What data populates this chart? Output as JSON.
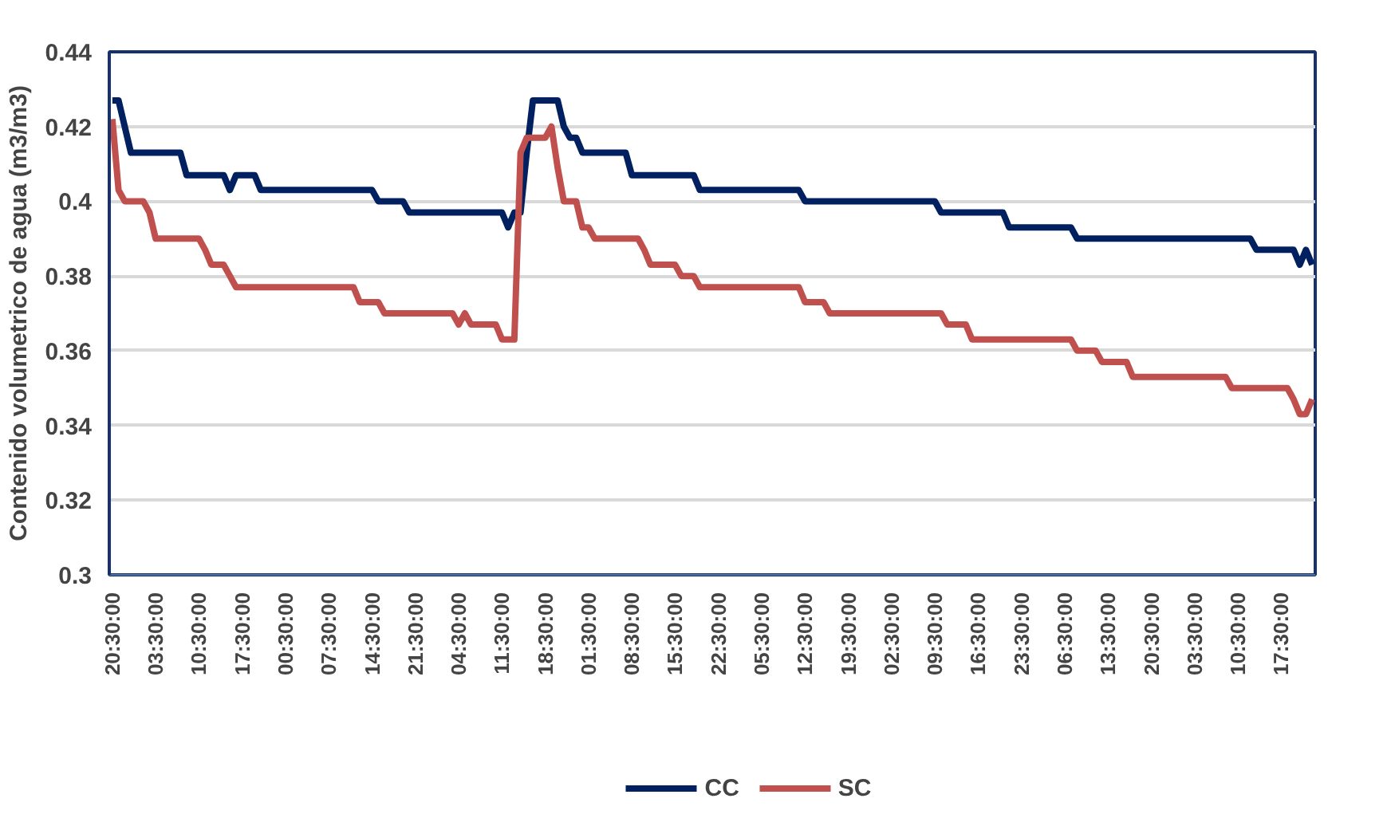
{
  "chart_data": {
    "type": "line",
    "ylabel": "Contenido volumetrico de agua (m3/m3)",
    "ylim": [
      0.3,
      0.44
    ],
    "yticks": [
      0.3,
      0.32,
      0.34,
      0.36,
      0.38,
      0.4,
      0.42,
      0.44
    ],
    "categories": [
      "20:30:00",
      null,
      null,
      null,
      null,
      null,
      null,
      "03:30:00",
      null,
      null,
      null,
      null,
      null,
      null,
      "10:30:00",
      null,
      null,
      null,
      null,
      null,
      null,
      "17:30:00",
      null,
      null,
      null,
      null,
      null,
      null,
      "00:30:00",
      null,
      null,
      null,
      null,
      null,
      null,
      "07:30:00",
      null,
      null,
      null,
      null,
      null,
      null,
      "14:30:00",
      null,
      null,
      null,
      null,
      null,
      null,
      "21:30:00",
      null,
      null,
      null,
      null,
      null,
      null,
      "04:30:00",
      null,
      null,
      null,
      null,
      null,
      null,
      "11:30:00",
      null,
      null,
      null,
      null,
      null,
      null,
      "18:30:00",
      null,
      null,
      null,
      null,
      null,
      null,
      "01:30:00",
      null,
      null,
      null,
      null,
      null,
      null,
      "08:30:00",
      null,
      null,
      null,
      null,
      null,
      null,
      "15:30:00",
      null,
      null,
      null,
      null,
      null,
      null,
      "22:30:00",
      null,
      null,
      null,
      null,
      null,
      null,
      "05:30:00",
      null,
      null,
      null,
      null,
      null,
      null,
      "12:30:00",
      null,
      null,
      null,
      null,
      null,
      null,
      "19:30:00",
      null,
      null,
      null,
      null,
      null,
      null,
      "02:30:00",
      null,
      null,
      null,
      null,
      null,
      null,
      "09:30:00",
      null,
      null,
      null,
      null,
      null,
      null,
      "16:30:00",
      null,
      null,
      null,
      null,
      null,
      null,
      "23:30:00",
      null,
      null,
      null,
      null,
      null,
      null,
      "06:30:00",
      null,
      null,
      null,
      null,
      null,
      null,
      "13:30:00",
      null,
      null,
      null,
      null,
      null,
      null,
      "20:30:00",
      null,
      null,
      null,
      null,
      null,
      null,
      "03:30:00",
      null,
      null,
      null,
      null,
      null,
      null,
      "10:30:00",
      null,
      null,
      null,
      null,
      null,
      null,
      "17:30:00",
      null,
      null,
      null,
      null,
      null
    ],
    "grid": "y",
    "legend": "bottom",
    "line_style": "solid",
    "marker": "none",
    "series": [
      {
        "name": "CC",
        "color": "#002060",
        "values": [
          0.427,
          0.427,
          0.42,
          0.413,
          0.413,
          0.413,
          0.413,
          0.413,
          0.413,
          0.413,
          0.413,
          0.413,
          0.407,
          0.407,
          0.407,
          0.407,
          0.407,
          0.407,
          0.407,
          0.403,
          0.407,
          0.407,
          0.407,
          0.407,
          0.403,
          0.403,
          0.403,
          0.403,
          0.403,
          0.403,
          0.403,
          0.403,
          0.403,
          0.403,
          0.403,
          0.403,
          0.403,
          0.403,
          0.403,
          0.403,
          0.403,
          0.403,
          0.403,
          0.4,
          0.4,
          0.4,
          0.4,
          0.4,
          0.397,
          0.397,
          0.397,
          0.397,
          0.397,
          0.397,
          0.397,
          0.397,
          0.397,
          0.397,
          0.397,
          0.397,
          0.397,
          0.397,
          0.397,
          0.397,
          0.393,
          0.397,
          0.397,
          0.413,
          0.427,
          0.427,
          0.427,
          0.427,
          0.427,
          0.42,
          0.417,
          0.417,
          0.413,
          0.413,
          0.413,
          0.413,
          0.413,
          0.413,
          0.413,
          0.413,
          0.407,
          0.407,
          0.407,
          0.407,
          0.407,
          0.407,
          0.407,
          0.407,
          0.407,
          0.407,
          0.407,
          0.403,
          0.403,
          0.403,
          0.403,
          0.403,
          0.403,
          0.403,
          0.403,
          0.403,
          0.403,
          0.403,
          0.403,
          0.403,
          0.403,
          0.403,
          0.403,
          0.403,
          0.4,
          0.4,
          0.4,
          0.4,
          0.4,
          0.4,
          0.4,
          0.4,
          0.4,
          0.4,
          0.4,
          0.4,
          0.4,
          0.4,
          0.4,
          0.4,
          0.4,
          0.4,
          0.4,
          0.4,
          0.4,
          0.4,
          0.397,
          0.397,
          0.397,
          0.397,
          0.397,
          0.397,
          0.397,
          0.397,
          0.397,
          0.397,
          0.397,
          0.393,
          0.393,
          0.393,
          0.393,
          0.393,
          0.393,
          0.393,
          0.393,
          0.393,
          0.393,
          0.393,
          0.39,
          0.39,
          0.39,
          0.39,
          0.39,
          0.39,
          0.39,
          0.39,
          0.39,
          0.39,
          0.39,
          0.39,
          0.39,
          0.39,
          0.39,
          0.39,
          0.39,
          0.39,
          0.39,
          0.39,
          0.39,
          0.39,
          0.39,
          0.39,
          0.39,
          0.39,
          0.39,
          0.39,
          0.39,
          0.387,
          0.387,
          0.387,
          0.387,
          0.387,
          0.387,
          0.387,
          0.383,
          0.387,
          0.383
        ]
      },
      {
        "name": "SC",
        "color": "#c0504d",
        "values": [
          0.422,
          0.403,
          0.4,
          0.4,
          0.4,
          0.4,
          0.397,
          0.39,
          0.39,
          0.39,
          0.39,
          0.39,
          0.39,
          0.39,
          0.39,
          0.387,
          0.383,
          0.383,
          0.383,
          0.38,
          0.377,
          0.377,
          0.377,
          0.377,
          0.377,
          0.377,
          0.377,
          0.377,
          0.377,
          0.377,
          0.377,
          0.377,
          0.377,
          0.377,
          0.377,
          0.377,
          0.377,
          0.377,
          0.377,
          0.377,
          0.373,
          0.373,
          0.373,
          0.373,
          0.37,
          0.37,
          0.37,
          0.37,
          0.37,
          0.37,
          0.37,
          0.37,
          0.37,
          0.37,
          0.37,
          0.37,
          0.367,
          0.37,
          0.367,
          0.367,
          0.367,
          0.367,
          0.367,
          0.363,
          0.363,
          0.363,
          0.413,
          0.417,
          0.417,
          0.417,
          0.417,
          0.42,
          0.409,
          0.4,
          0.4,
          0.4,
          0.393,
          0.393,
          0.39,
          0.39,
          0.39,
          0.39,
          0.39,
          0.39,
          0.39,
          0.39,
          0.387,
          0.383,
          0.383,
          0.383,
          0.383,
          0.383,
          0.38,
          0.38,
          0.38,
          0.377,
          0.377,
          0.377,
          0.377,
          0.377,
          0.377,
          0.377,
          0.377,
          0.377,
          0.377,
          0.377,
          0.377,
          0.377,
          0.377,
          0.377,
          0.377,
          0.377,
          0.373,
          0.373,
          0.373,
          0.373,
          0.37,
          0.37,
          0.37,
          0.37,
          0.37,
          0.37,
          0.37,
          0.37,
          0.37,
          0.37,
          0.37,
          0.37,
          0.37,
          0.37,
          0.37,
          0.37,
          0.37,
          0.37,
          0.37,
          0.367,
          0.367,
          0.367,
          0.367,
          0.363,
          0.363,
          0.363,
          0.363,
          0.363,
          0.363,
          0.363,
          0.363,
          0.363,
          0.363,
          0.363,
          0.363,
          0.363,
          0.363,
          0.363,
          0.363,
          0.363,
          0.36,
          0.36,
          0.36,
          0.36,
          0.357,
          0.357,
          0.357,
          0.357,
          0.357,
          0.353,
          0.353,
          0.353,
          0.353,
          0.353,
          0.353,
          0.353,
          0.353,
          0.353,
          0.353,
          0.353,
          0.353,
          0.353,
          0.353,
          0.353,
          0.353,
          0.35,
          0.35,
          0.35,
          0.35,
          0.35,
          0.35,
          0.35,
          0.35,
          0.35,
          0.35,
          0.347,
          0.343,
          0.343,
          0.347
        ]
      }
    ]
  }
}
